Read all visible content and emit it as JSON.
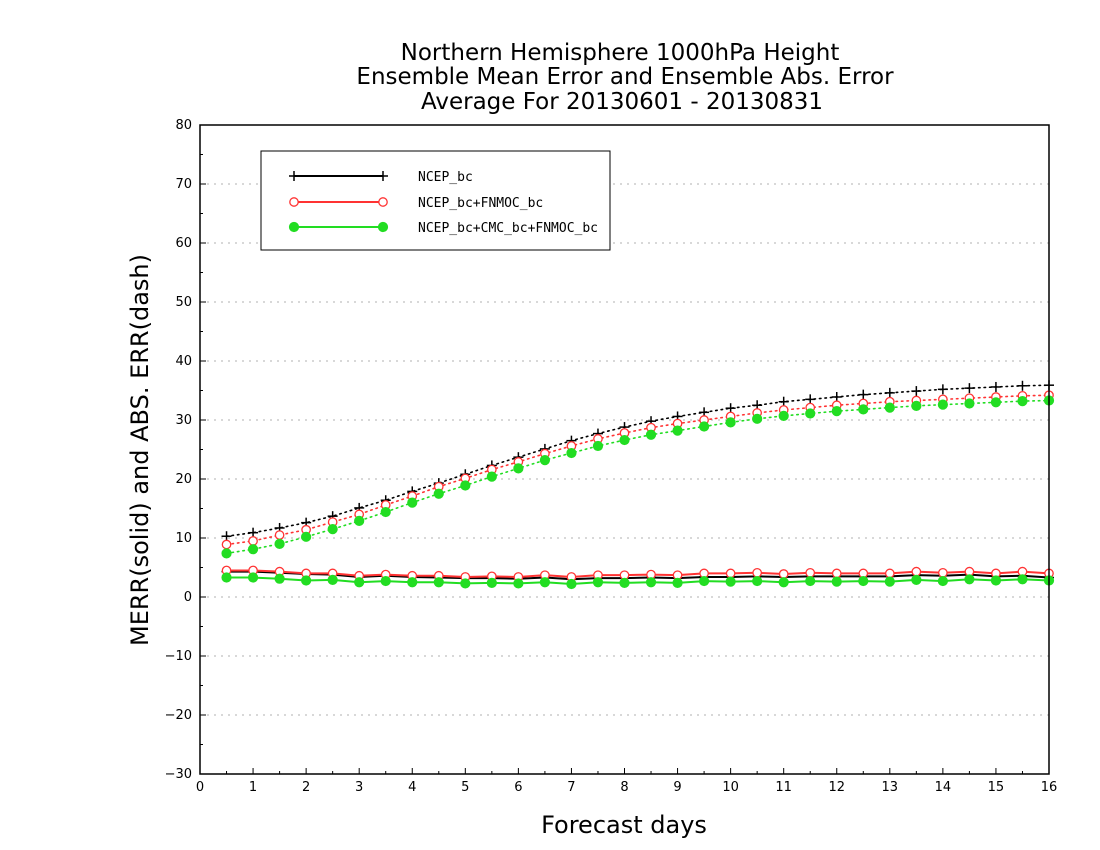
{
  "chart_data": {
    "type": "line",
    "title": [
      "Northern Hemisphere 1000hPa Height",
      "Ensemble Mean Error and Ensemble Abs. Error",
      "Average For 20130601 - 20130831"
    ],
    "xlabel": "Forecast days",
    "ylabel": "MERR(solid) and ABS. ERR(dash)",
    "xlim": [
      0,
      16
    ],
    "ylim": [
      -30,
      80
    ],
    "xticks": [
      0,
      1,
      2,
      3,
      4,
      5,
      6,
      7,
      8,
      9,
      10,
      11,
      12,
      13,
      14,
      15,
      16
    ],
    "yticks": [
      -30,
      -20,
      -10,
      0,
      10,
      20,
      30,
      40,
      50,
      60,
      70,
      80
    ],
    "grid": "dotted horizontal",
    "legend_position": "top-left",
    "x": [
      0.5,
      1,
      1.5,
      2,
      2.5,
      3,
      3.5,
      4,
      4.5,
      5,
      5.5,
      6,
      6.5,
      7,
      7.5,
      8,
      8.5,
      9,
      9.5,
      10,
      10.5,
      11,
      11.5,
      12,
      12.5,
      13,
      13.5,
      14,
      14.5,
      15,
      15.5,
      16
    ],
    "series": [
      {
        "name": "NCEP_bc",
        "color": "#000000",
        "marker": "plus",
        "merr": [
          4.3,
          4.3,
          4.1,
          3.9,
          3.8,
          3.4,
          3.6,
          3.4,
          3.3,
          3.2,
          3.2,
          3.1,
          3.3,
          3.0,
          3.2,
          3.2,
          3.3,
          3.2,
          3.4,
          3.4,
          3.5,
          3.4,
          3.5,
          3.5,
          3.5,
          3.5,
          3.7,
          3.6,
          3.8,
          3.5,
          3.6,
          3.3
        ],
        "abs_err": [
          10.3,
          10.9,
          11.7,
          12.6,
          13.7,
          15.1,
          16.4,
          17.9,
          19.3,
          20.8,
          22.3,
          23.7,
          25.1,
          26.5,
          27.7,
          28.8,
          29.8,
          30.6,
          31.3,
          32.0,
          32.5,
          33.1,
          33.5,
          33.9,
          34.3,
          34.6,
          34.9,
          35.2,
          35.4,
          35.6,
          35.8,
          35.9
        ]
      },
      {
        "name": "NCEP_bc+FNMOC_bc",
        "color": "#ff3333",
        "marker": "open-circle",
        "merr": [
          4.5,
          4.5,
          4.3,
          4.0,
          4.0,
          3.6,
          3.8,
          3.6,
          3.6,
          3.4,
          3.5,
          3.4,
          3.7,
          3.4,
          3.7,
          3.7,
          3.8,
          3.7,
          4.0,
          4.0,
          4.1,
          3.9,
          4.1,
          4.0,
          4.0,
          4.0,
          4.3,
          4.1,
          4.3,
          4.0,
          4.3,
          4.0
        ],
        "abs_err": [
          8.9,
          9.5,
          10.5,
          11.4,
          12.7,
          14.0,
          15.6,
          17.1,
          18.7,
          20.1,
          21.6,
          22.9,
          24.3,
          25.6,
          26.8,
          27.8,
          28.7,
          29.4,
          30.0,
          30.6,
          31.2,
          31.7,
          32.1,
          32.5,
          32.8,
          33.1,
          33.3,
          33.5,
          33.7,
          33.9,
          34.1,
          34.2
        ]
      },
      {
        "name": "NCEP_bc+CMC_bc+FNMOC_bc",
        "color": "#22dd22",
        "marker": "filled-circle",
        "merr": [
          3.3,
          3.3,
          3.1,
          2.8,
          2.9,
          2.5,
          2.7,
          2.5,
          2.5,
          2.3,
          2.4,
          2.3,
          2.5,
          2.2,
          2.5,
          2.4,
          2.5,
          2.4,
          2.7,
          2.6,
          2.7,
          2.5,
          2.7,
          2.6,
          2.7,
          2.6,
          2.9,
          2.7,
          3.0,
          2.8,
          3.0,
          2.8
        ],
        "abs_err": [
          7.4,
          8.1,
          9.0,
          10.2,
          11.5,
          12.9,
          14.4,
          16.0,
          17.5,
          18.9,
          20.4,
          21.8,
          23.2,
          24.4,
          25.6,
          26.6,
          27.5,
          28.2,
          28.9,
          29.6,
          30.2,
          30.7,
          31.1,
          31.5,
          31.8,
          32.1,
          32.4,
          32.6,
          32.8,
          33.0,
          33.2,
          33.3
        ]
      }
    ]
  }
}
